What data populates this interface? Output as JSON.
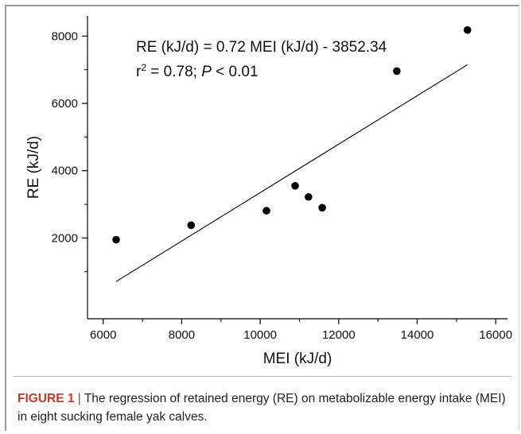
{
  "chart_data": {
    "type": "scatter",
    "xlabel": "MEI (kJ/d)",
    "ylabel": "RE (kJ/d)",
    "xlim": [
      5600,
      16300
    ],
    "ylim": [
      -400,
      8600
    ],
    "x_ticks": [
      6000,
      8000,
      10000,
      12000,
      14000,
      16000
    ],
    "y_ticks": [
      2000,
      4000,
      6000,
      8000
    ],
    "x_tick_labels": [
      "6000",
      "8000",
      "10000",
      "12000",
      "14000",
      "16000"
    ],
    "y_tick_labels": [
      "2000",
      "4000",
      "6000",
      "8000"
    ],
    "points": [
      {
        "x": 6330,
        "y": 1950
      },
      {
        "x": 8240,
        "y": 2380
      },
      {
        "x": 10160,
        "y": 2810
      },
      {
        "x": 10890,
        "y": 3550
      },
      {
        "x": 11230,
        "y": 3220
      },
      {
        "x": 11580,
        "y": 2900
      },
      {
        "x": 13480,
        "y": 6960
      },
      {
        "x": 15280,
        "y": 8180
      }
    ],
    "regression": {
      "slope": 0.72,
      "intercept": -3852.34,
      "x_start": 6330,
      "x_end": 15280
    },
    "annotation_line1": "RE (kJ/d) = 0.72 MEI (kJ/d) - 3852.34",
    "annotation_r": "r",
    "annotation_sup": "2",
    "annotation_mid": " = 0.78; ",
    "annotation_p": "P",
    "annotation_tail": " < 0.01",
    "grid": false,
    "colors": {
      "points": "#000000",
      "line": "#000000"
    }
  },
  "caption": {
    "label": "FIGURE 1",
    "separator": " | ",
    "text": "The regression of retained energy (RE) on metabolizable energy intake (MEI) in eight sucking female yak calves."
  }
}
